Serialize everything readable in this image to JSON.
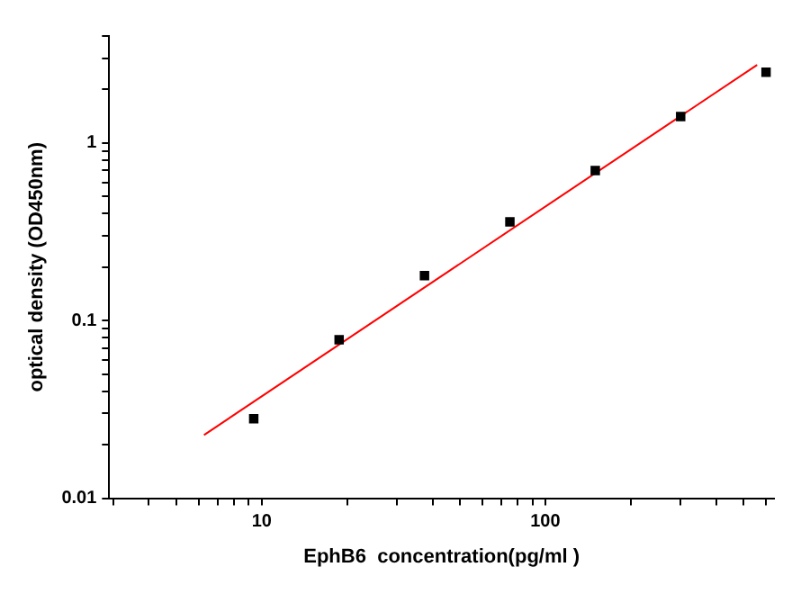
{
  "chart_data": {
    "type": "scatter",
    "xlabel": "EphB6  concentration(pg/ml )",
    "ylabel": "optical density (OD450nm)",
    "log": "xy",
    "grid": false,
    "legend": false,
    "xlim": [
      2.9,
      640
    ],
    "ylim": [
      0.01,
      4
    ],
    "xticks": [
      {
        "value": 3,
        "label": null
      },
      {
        "value": 4,
        "label": null
      },
      {
        "value": 5,
        "label": null
      },
      {
        "value": 6,
        "label": null
      },
      {
        "value": 7,
        "label": null
      },
      {
        "value": 8,
        "label": null
      },
      {
        "value": 9,
        "label": null
      },
      10,
      {
        "value": 20,
        "label": null
      },
      {
        "value": 30,
        "label": null
      },
      {
        "value": 40,
        "label": null
      },
      {
        "value": 50,
        "label": null
      },
      {
        "value": 60,
        "label": null
      },
      {
        "value": 70,
        "label": null
      },
      {
        "value": 80,
        "label": null
      },
      {
        "value": 90,
        "label": null
      },
      100,
      {
        "value": 200,
        "label": null
      },
      {
        "value": 300,
        "label": null
      },
      {
        "value": 400,
        "label": null
      },
      {
        "value": 500,
        "label": null
      },
      {
        "value": 600,
        "label": null
      }
    ],
    "yticks": [
      0.01,
      {
        "value": 0.02,
        "label": null
      },
      {
        "value": 0.03,
        "label": null
      },
      {
        "value": 0.04,
        "label": null
      },
      {
        "value": 0.05,
        "label": null
      },
      {
        "value": 0.06,
        "label": null
      },
      {
        "value": 0.07,
        "label": null
      },
      {
        "value": 0.08,
        "label": null
      },
      {
        "value": 0.09,
        "label": null
      },
      0.1,
      {
        "value": 0.2,
        "label": null
      },
      {
        "value": 0.3,
        "label": null
      },
      {
        "value": 0.4,
        "label": null
      },
      {
        "value": 0.5,
        "label": null
      },
      {
        "value": 0.6,
        "label": null
      },
      {
        "value": 0.7,
        "label": null
      },
      {
        "value": 0.8,
        "label": null
      },
      {
        "value": 0.9,
        "label": null
      },
      1,
      {
        "value": 2,
        "label": null
      },
      {
        "value": 3,
        "label": null
      },
      {
        "value": 4,
        "label": null
      }
    ],
    "series": [
      {
        "color": "#000000",
        "marker": "square",
        "x": [
          9.375,
          18.75,
          37.5,
          75,
          150,
          300,
          600
        ],
        "values": [
          0.028,
          0.078,
          0.179,
          0.36,
          0.7,
          1.41,
          2.5
        ]
      },
      {
        "type": "line",
        "color": "#ff0000",
        "marker": "none",
        "line_style": "solid",
        "x": [
          6.26,
          558
        ],
        "values": [
          0.0227,
          2.75
        ]
      }
    ]
  }
}
